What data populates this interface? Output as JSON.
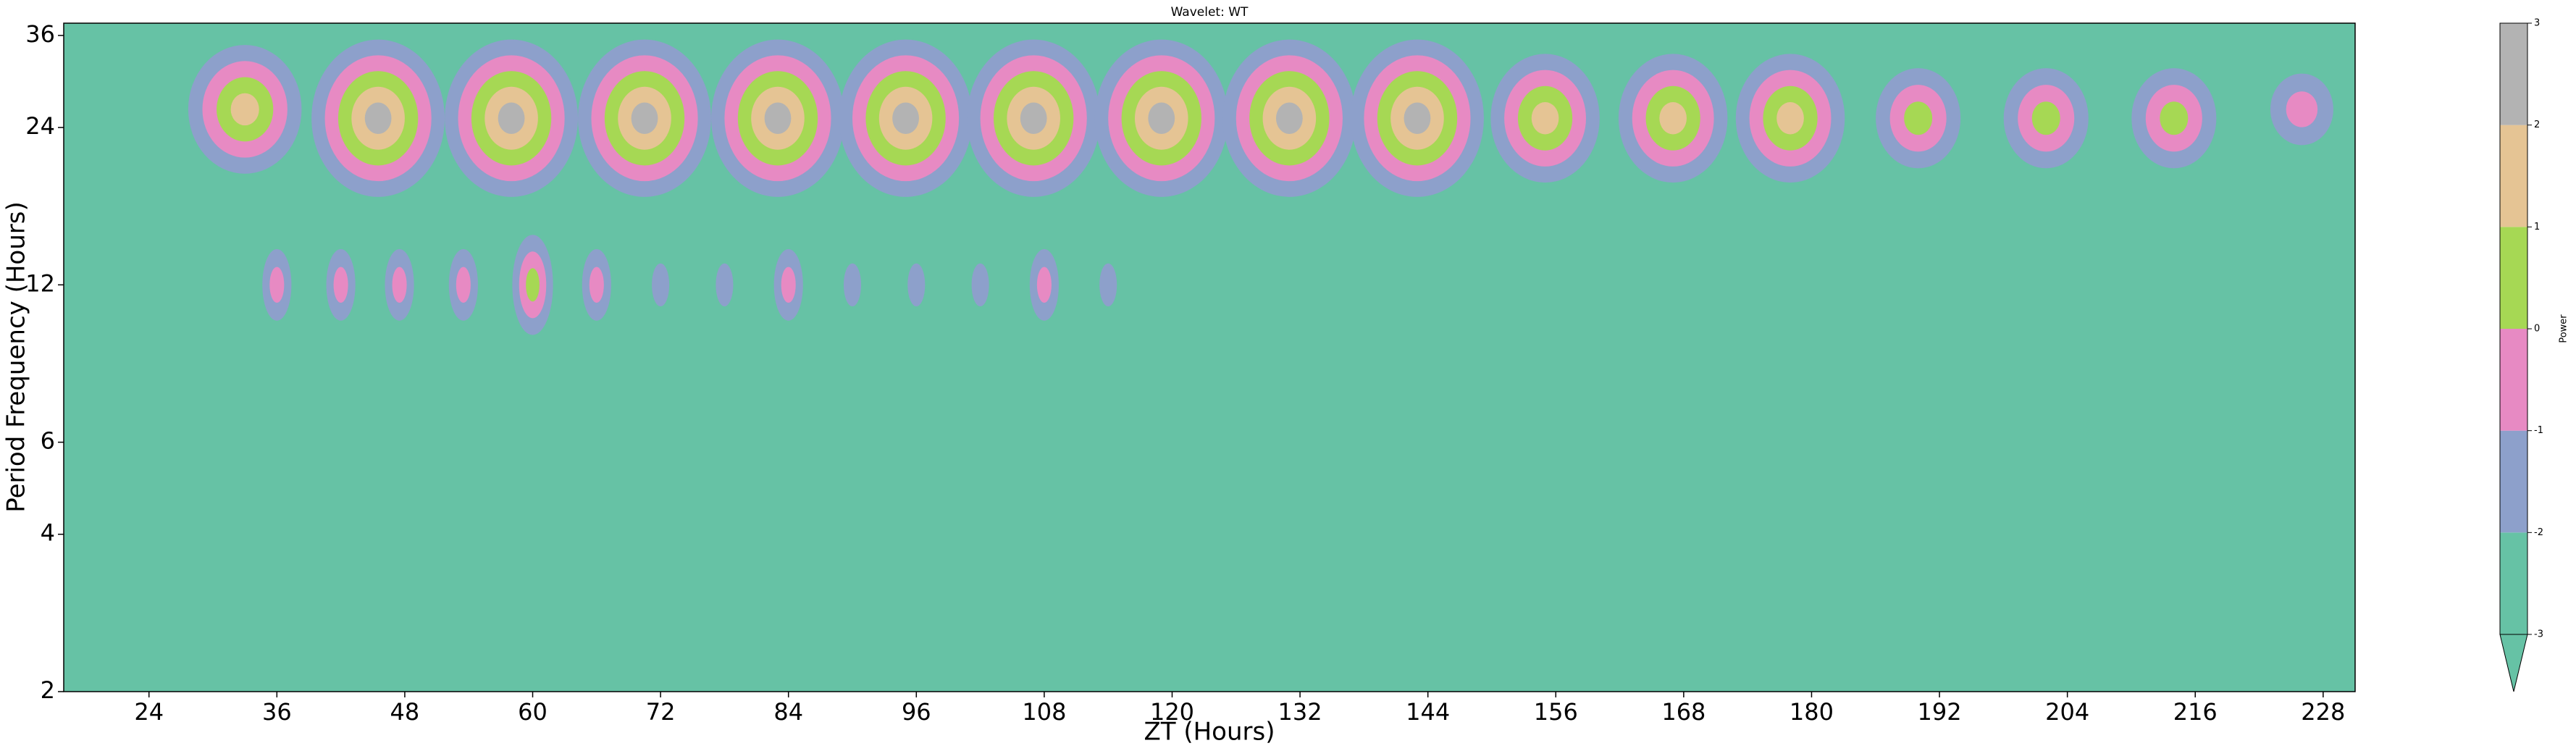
{
  "chart_data": {
    "type": "contour",
    "title": "Wavelet: WT",
    "xlabel": "ZT (Hours)",
    "ylabel": "Period Frequency (Hours)",
    "xlim": [
      16,
      231
    ],
    "xticks": [
      24,
      36,
      48,
      60,
      72,
      84,
      96,
      108,
      120,
      132,
      144,
      156,
      168,
      180,
      192,
      204,
      216,
      228
    ],
    "ylim": [
      2,
      38
    ],
    "yscale": "log2",
    "yticks": [
      2,
      4,
      6,
      12,
      24,
      36
    ],
    "colorbar": {
      "label": "Power",
      "levels": [
        -3,
        -2,
        -1,
        0,
        1,
        2,
        3
      ],
      "colors": [
        "#66c2a5",
        "#8da0cb",
        "#e78ac3",
        "#a6d854",
        "#e5c494",
        "#b3b3b3"
      ]
    },
    "blobs": [
      {
        "x": 33,
        "y": 26,
        "peak": 1.5
      },
      {
        "x": 45.5,
        "y": 25,
        "peak": 2.5
      },
      {
        "x": 58,
        "y": 25,
        "peak": 2.5
      },
      {
        "x": 70.5,
        "y": 25,
        "peak": 2.5
      },
      {
        "x": 83,
        "y": 25,
        "peak": 2.5
      },
      {
        "x": 95,
        "y": 25,
        "peak": 2.5
      },
      {
        "x": 107,
        "y": 25,
        "peak": 2.5
      },
      {
        "x": 119,
        "y": 25,
        "peak": 2.5
      },
      {
        "x": 131,
        "y": 25,
        "peak": 2.5
      },
      {
        "x": 143,
        "y": 25,
        "peak": 2.5
      },
      {
        "x": 155,
        "y": 25,
        "peak": 1.5
      },
      {
        "x": 167,
        "y": 25,
        "peak": 1.5
      },
      {
        "x": 178,
        "y": 25,
        "peak": 1.5
      },
      {
        "x": 190,
        "y": 25,
        "peak": 0.5
      },
      {
        "x": 202,
        "y": 25,
        "peak": 0.5
      },
      {
        "x": 214,
        "y": 25,
        "peak": 0.5
      },
      {
        "x": 226,
        "y": 26,
        "peak": -0.5
      },
      {
        "x": 36,
        "y": 12,
        "peak": -0.5
      },
      {
        "x": 42,
        "y": 12,
        "peak": -0.5
      },
      {
        "x": 47.5,
        "y": 12,
        "peak": -0.5
      },
      {
        "x": 53.5,
        "y": 12,
        "peak": -0.5
      },
      {
        "x": 60,
        "y": 12,
        "peak": 0.5
      },
      {
        "x": 66,
        "y": 12,
        "peak": -0.5
      },
      {
        "x": 72,
        "y": 12,
        "peak": -1.5
      },
      {
        "x": 78,
        "y": 12,
        "peak": -1.5
      },
      {
        "x": 84,
        "y": 12,
        "peak": -0.5
      },
      {
        "x": 90,
        "y": 12,
        "peak": -1.5
      },
      {
        "x": 96,
        "y": 12,
        "peak": -1.5
      },
      {
        "x": 102,
        "y": 12,
        "peak": -1.5
      },
      {
        "x": 108,
        "y": 12,
        "peak": -0.5
      },
      {
        "x": 114,
        "y": 12,
        "peak": -1.5
      }
    ]
  }
}
